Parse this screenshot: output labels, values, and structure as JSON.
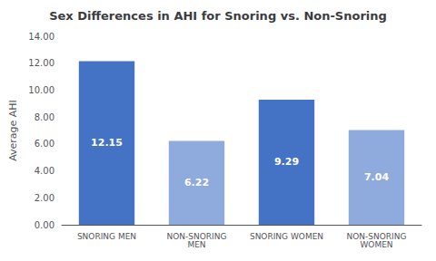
{
  "chart_data": {
    "type": "bar",
    "title": "Sex Differences in AHI for Snoring vs. Non-Snoring",
    "categories": [
      "SNORING MEN",
      "NON-SNORING\nMEN",
      "SNORING WOMEN",
      "NON-SNORING\nWOMEN"
    ],
    "values": [
      12.15,
      6.22,
      9.29,
      7.04
    ],
    "colors": [
      "#4472C4",
      "#8FAADC",
      "#4472C4",
      "#8FAADC"
    ],
    "ylabel": "Average AHI",
    "ylim": [
      0,
      14
    ],
    "yticks": [
      {
        "value": 0,
        "label": "0.00"
      },
      {
        "value": 2,
        "label": "2.00"
      },
      {
        "value": 4,
        "label": "4.00"
      },
      {
        "value": 6,
        "label": "6.00"
      },
      {
        "value": 8,
        "label": "8.00"
      },
      {
        "value": 10,
        "label": "10.00"
      },
      {
        "value": 12,
        "label": "12.00"
      },
      {
        "value": 14,
        "label": "14.00"
      }
    ],
    "data_labels": true,
    "grid": false
  }
}
